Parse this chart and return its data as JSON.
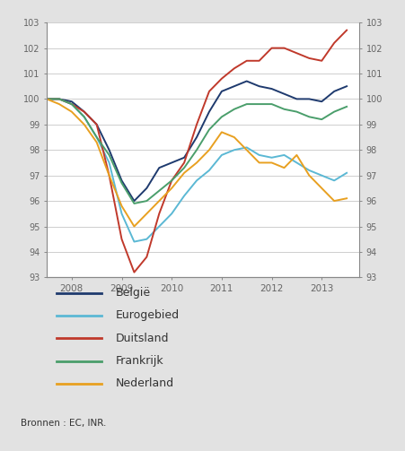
{
  "source": "Bronnen : EC, INR.",
  "ylim": [
    93,
    103
  ],
  "yticks": [
    93,
    94,
    95,
    96,
    97,
    98,
    99,
    100,
    101,
    102,
    103
  ],
  "background_color": "#e2e2e2",
  "plot_bg_color": "#ffffff",
  "series": {
    "België": {
      "color": "#1e3a6e",
      "data": {
        "2007Q3": 100.0,
        "2007Q4": 100.0,
        "2008Q1": 99.9,
        "2008Q2": 99.5,
        "2008Q3": 99.0,
        "2008Q4": 98.0,
        "2009Q1": 96.8,
        "2009Q2": 96.0,
        "2009Q3": 96.5,
        "2009Q4": 97.3,
        "2010Q1": 97.5,
        "2010Q2": 97.7,
        "2010Q3": 98.5,
        "2010Q4": 99.5,
        "2011Q1": 100.3,
        "2011Q2": 100.5,
        "2011Q3": 100.7,
        "2011Q4": 100.5,
        "2012Q1": 100.4,
        "2012Q2": 100.2,
        "2012Q3": 100.0,
        "2012Q4": 100.0,
        "2013Q1": 99.9,
        "2013Q2": 100.3,
        "2013Q3": 100.5
      }
    },
    "Eurogebied": {
      "color": "#5bb8d4",
      "data": {
        "2007Q3": 100.0,
        "2007Q4": 100.0,
        "2008Q1": 99.8,
        "2008Q2": 99.3,
        "2008Q3": 98.5,
        "2008Q4": 97.5,
        "2009Q1": 95.5,
        "2009Q2": 94.4,
        "2009Q3": 94.5,
        "2009Q4": 95.0,
        "2010Q1": 95.5,
        "2010Q2": 96.2,
        "2010Q3": 96.8,
        "2010Q4": 97.2,
        "2011Q1": 97.8,
        "2011Q2": 98.0,
        "2011Q3": 98.1,
        "2011Q4": 97.8,
        "2012Q1": 97.7,
        "2012Q2": 97.8,
        "2012Q3": 97.5,
        "2012Q4": 97.2,
        "2013Q1": 97.0,
        "2013Q2": 96.8,
        "2013Q3": 97.1
      }
    },
    "Duitsland": {
      "color": "#c0392b",
      "data": {
        "2007Q3": 100.0,
        "2007Q4": 100.0,
        "2008Q1": 99.8,
        "2008Q2": 99.5,
        "2008Q3": 99.0,
        "2008Q4": 97.0,
        "2009Q1": 94.5,
        "2009Q2": 93.2,
        "2009Q3": 93.8,
        "2009Q4": 95.5,
        "2010Q1": 96.8,
        "2010Q2": 97.5,
        "2010Q3": 99.0,
        "2010Q4": 100.3,
        "2011Q1": 100.8,
        "2011Q2": 101.2,
        "2011Q3": 101.5,
        "2011Q4": 101.5,
        "2012Q1": 102.0,
        "2012Q2": 102.0,
        "2012Q3": 101.8,
        "2012Q4": 101.6,
        "2013Q1": 101.5,
        "2013Q2": 102.2,
        "2013Q3": 102.7
      }
    },
    "Frankrijk": {
      "color": "#4a9e6b",
      "data": {
        "2007Q3": 100.0,
        "2007Q4": 100.0,
        "2008Q1": 99.8,
        "2008Q2": 99.3,
        "2008Q3": 98.5,
        "2008Q4": 97.8,
        "2009Q1": 96.7,
        "2009Q2": 95.9,
        "2009Q3": 96.0,
        "2009Q4": 96.4,
        "2010Q1": 96.8,
        "2010Q2": 97.3,
        "2010Q3": 98.0,
        "2010Q4": 98.8,
        "2011Q1": 99.3,
        "2011Q2": 99.6,
        "2011Q3": 99.8,
        "2011Q4": 99.8,
        "2012Q1": 99.8,
        "2012Q2": 99.6,
        "2012Q3": 99.5,
        "2012Q4": 99.3,
        "2013Q1": 99.2,
        "2013Q2": 99.5,
        "2013Q3": 99.7
      }
    },
    "Nederland": {
      "color": "#e8a020",
      "data": {
        "2007Q3": 100.0,
        "2007Q4": 99.8,
        "2008Q1": 99.5,
        "2008Q2": 99.0,
        "2008Q3": 98.3,
        "2008Q4": 97.0,
        "2009Q1": 95.8,
        "2009Q2": 95.0,
        "2009Q3": 95.5,
        "2009Q4": 96.0,
        "2010Q1": 96.5,
        "2010Q2": 97.1,
        "2010Q3": 97.5,
        "2010Q4": 98.0,
        "2011Q1": 98.7,
        "2011Q2": 98.5,
        "2011Q3": 98.0,
        "2011Q4": 97.5,
        "2012Q1": 97.5,
        "2012Q2": 97.3,
        "2012Q3": 97.8,
        "2012Q4": 97.0,
        "2013Q1": 96.5,
        "2013Q2": 96.0,
        "2013Q3": 96.1
      }
    }
  },
  "legend_entries": [
    "België",
    "Eurogebied",
    "Duitsland",
    "Frankrijk",
    "Nederland"
  ],
  "x_tick_labels": [
    "2008",
    "2009",
    "2010",
    "2011",
    "2012",
    "2013"
  ],
  "x_tick_positions": [
    2008.0,
    2009.0,
    2010.0,
    2011.0,
    2012.0,
    2013.0
  ],
  "top_bar_color": "#2e5f8a",
  "bottom_bar_color": "#2e5f8a"
}
